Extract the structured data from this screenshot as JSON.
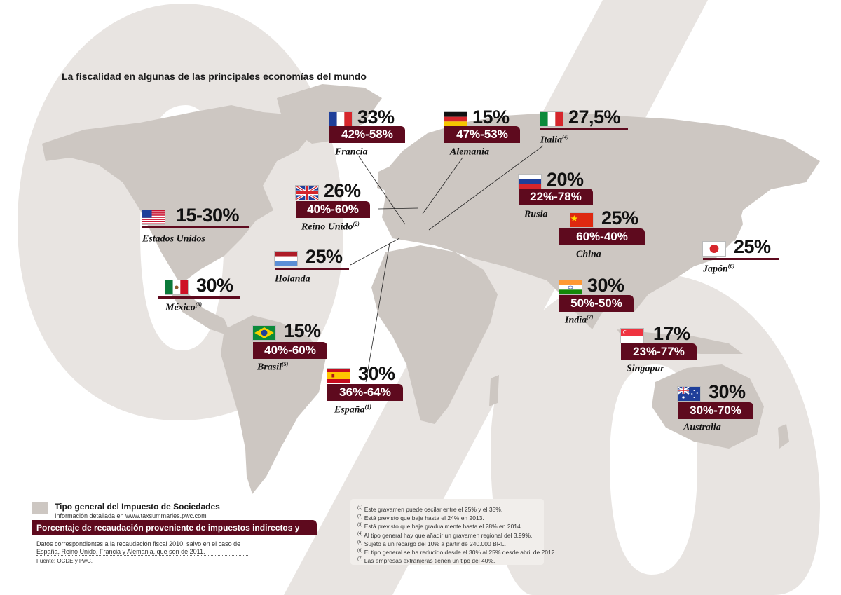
{
  "title": "La fiscalidad en algunas de las principales economías del mundo",
  "colors": {
    "accent": "#5e0a1e",
    "map": "#cdc7c2",
    "percent_glyph": "#e8e4e1"
  },
  "countries": [
    {
      "id": "francia",
      "name": "Francia",
      "note": "",
      "rate": "33%",
      "split": "42%-58%",
      "flag": "france-flag"
    },
    {
      "id": "alemania",
      "name": "Alemania",
      "note": "",
      "rate": "15%",
      "split": "47%-53%",
      "flag": "germany-flag"
    },
    {
      "id": "italia",
      "name": "Italia",
      "note": "(4)",
      "rate": "27,5%",
      "split": "",
      "flag": "italy-flag"
    },
    {
      "id": "reino-unido",
      "name": "Reino Unido",
      "note": "(2)",
      "rate": "26%",
      "split": "40%-60%",
      "flag": "uk-flag"
    },
    {
      "id": "estados-unidos",
      "name": "Estados Unidos",
      "note": "",
      "rate": "15-30%",
      "split": "",
      "flag": "usa-flag"
    },
    {
      "id": "holanda",
      "name": "Holanda",
      "note": "",
      "rate": "25%",
      "split": "",
      "flag": "netherlands-flag"
    },
    {
      "id": "rusia",
      "name": "Rusia",
      "note": "",
      "rate": "20%",
      "split": "22%-78%",
      "flag": "russia-flag"
    },
    {
      "id": "china",
      "name": "China",
      "note": "",
      "rate": "25%",
      "split": "60%-40%",
      "flag": "china-flag"
    },
    {
      "id": "japon",
      "name": "Japón",
      "note": "(6)",
      "rate": "25%",
      "split": "",
      "flag": "japan-flag"
    },
    {
      "id": "mexico",
      "name": "México",
      "note": "(3)",
      "rate": "30%",
      "split": "",
      "flag": "mexico-flag"
    },
    {
      "id": "india",
      "name": "India",
      "note": "(7)",
      "rate": "30%",
      "split": "50%-50%",
      "flag": "india-flag"
    },
    {
      "id": "brasil",
      "name": "Brasil",
      "note": "(5)",
      "rate": "15%",
      "split": "40%-60%",
      "flag": "brazil-flag"
    },
    {
      "id": "espana",
      "name": "España",
      "note": "(1)",
      "rate": "30%",
      "split": "36%-64%",
      "flag": "spain-flag"
    },
    {
      "id": "singapur",
      "name": "Singapur",
      "note": "",
      "rate": "17%",
      "split": "23%-77%",
      "flag": "singapore-flag"
    },
    {
      "id": "australia",
      "name": "Australia",
      "note": "",
      "rate": "30%",
      "split": "30%-70%",
      "flag": "australia-flag"
    }
  ],
  "legend": {
    "rate_label": "Tipo general del Impuesto de Sociedades",
    "rate_sublabel": "Información detallada en www.taxsummaries.pwc.com",
    "split_label": "Porcentaje de recaudación proveniente de impuestos indirectos y directos",
    "note": "Datos correspondientes a la recaudación fiscal 2010, salvo en el caso de España, Reino Unido, Francia y Alemania, que son de 2011.",
    "source": "Fuente: OCDE y PwC."
  },
  "footnotes": [
    {
      "mark": "(1)",
      "text": "Este gravamen puede oscilar entre el 25% y el 35%."
    },
    {
      "mark": "(2)",
      "text": "Está previsto que baje hasta el 24% en 2013."
    },
    {
      "mark": "(3)",
      "text": "Está previsto que baje gradualmente hasta el 28% en 2014."
    },
    {
      "mark": "(4)",
      "text": "Al tipo general hay que añadir un gravamen regional del 3,99%."
    },
    {
      "mark": "(5)",
      "text": "Sujeto a un recargo del 10% a partir de 240.000 BRL."
    },
    {
      "mark": "(6)",
      "text": "El tipo general se ha reducido desde el 30% al 25% desde abril de 2012."
    },
    {
      "mark": "(7)",
      "text": "Las empresas extranjeras tienen un tipo del 40%."
    }
  ]
}
